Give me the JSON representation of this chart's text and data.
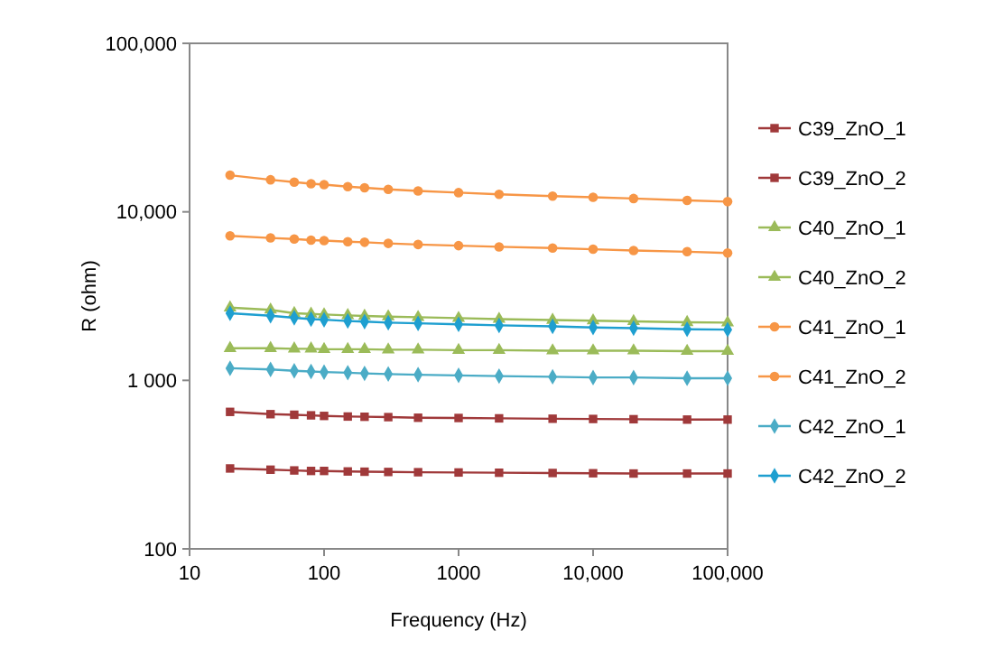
{
  "chart_data": {
    "type": "line",
    "xlabel": "Frequency (Hz)",
    "ylabel": "R  (ohm)",
    "log": "xy",
    "xlim": [
      10,
      100000
    ],
    "xticks": [
      10,
      100,
      1000,
      {
        "value": 10000,
        "label": "10,000"
      },
      {
        "value": 100000,
        "label": "100,000"
      }
    ],
    "ylim": [
      100,
      100000
    ],
    "yticks": [
      100,
      {
        "value": 1000,
        "label": "1 000"
      },
      {
        "value": 10000,
        "label": "10,000"
      },
      {
        "value": 100000,
        "label": "100,000"
      }
    ],
    "grid": false,
    "legend": "right",
    "line_style": "solid",
    "x": [
      20,
      40,
      60,
      80,
      100,
      150,
      200,
      300,
      500,
      1000,
      2000,
      5000,
      10000,
      20000,
      50000,
      100000
    ],
    "series": [
      {
        "name": "C39_ZnO_1",
        "color": "#a0393a",
        "marker": "square",
        "values": [
          300,
          295,
          292,
          290,
          290,
          288,
          287,
          286,
          285,
          284,
          283,
          282,
          281,
          280,
          280,
          280
        ]
      },
      {
        "name": "C39_ZnO_2",
        "color": "#a0393a",
        "marker": "square",
        "values": [
          650,
          630,
          625,
          620,
          615,
          610,
          608,
          605,
          600,
          598,
          595,
          592,
          590,
          588,
          585,
          585
        ]
      },
      {
        "name": "C40_ZnO_1",
        "color": "#9bbb59",
        "marker": "triangle",
        "values": [
          2700,
          2620,
          2500,
          2480,
          2460,
          2430,
          2410,
          2390,
          2370,
          2340,
          2310,
          2280,
          2260,
          2240,
          2210,
          2200
        ]
      },
      {
        "name": "C40_ZnO_2",
        "color": "#9bbb59",
        "marker": "triangle",
        "values": [
          1550,
          1550,
          1540,
          1540,
          1530,
          1530,
          1530,
          1520,
          1520,
          1510,
          1510,
          1500,
          1500,
          1500,
          1490,
          1490
        ]
      },
      {
        "name": "C41_ZnO_1",
        "color": "#f79646",
        "marker": "circle",
        "values": [
          16500,
          15500,
          15000,
          14700,
          14500,
          14100,
          13900,
          13600,
          13300,
          13000,
          12700,
          12400,
          12200,
          12000,
          11700,
          11500
        ]
      },
      {
        "name": "C41_ZnO_2",
        "color": "#f79646",
        "marker": "circle",
        "values": [
          7200,
          7000,
          6900,
          6800,
          6750,
          6650,
          6600,
          6500,
          6400,
          6300,
          6200,
          6100,
          6000,
          5900,
          5800,
          5700
        ]
      },
      {
        "name": "C42_ZnO_1",
        "color": "#4bacc6",
        "marker": "diamond",
        "values": [
          1180,
          1160,
          1140,
          1130,
          1120,
          1110,
          1100,
          1090,
          1080,
          1070,
          1060,
          1050,
          1040,
          1040,
          1030,
          1030
        ]
      },
      {
        "name": "C42_ZnO_2",
        "color": "#1e9fd0",
        "marker": "diamond",
        "values": [
          2500,
          2420,
          2350,
          2310,
          2290,
          2250,
          2230,
          2200,
          2180,
          2150,
          2120,
          2090,
          2060,
          2040,
          2010,
          2000
        ]
      }
    ]
  }
}
